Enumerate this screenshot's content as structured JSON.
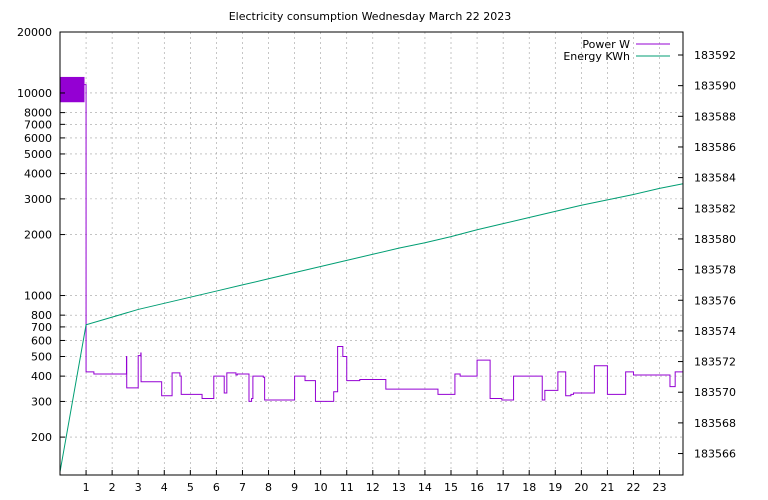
{
  "chart_data": {
    "type": "line",
    "title": "Electricity consumption Wednesday March 22 2023",
    "xlabel": "",
    "ylabel": "",
    "y2label": "",
    "grid": true,
    "legend_position": "top-right",
    "x_range": [
      0,
      23.9
    ],
    "x_ticks": [
      1,
      2,
      3,
      4,
      5,
      6,
      7,
      8,
      9,
      10,
      11,
      12,
      13,
      14,
      15,
      16,
      17,
      18,
      19,
      20,
      21,
      22,
      23
    ],
    "y_left": {
      "scale": "log",
      "range": [
        130,
        20000
      ],
      "ticks": [
        200,
        300,
        400,
        500,
        600,
        700,
        800,
        1000,
        2000,
        3000,
        4000,
        5000,
        6000,
        7000,
        8000,
        10000,
        20000
      ],
      "tick_labels": [
        "200",
        "300",
        "400",
        "500",
        "600",
        "700",
        "800",
        "1000",
        "2000",
        "3000",
        "4000",
        "5000",
        "6000",
        "7000",
        "8000",
        "10000",
        "20000"
      ]
    },
    "y_right": {
      "scale": "linear",
      "range": [
        183564.6,
        183593.5
      ],
      "ticks": [
        183566,
        183568,
        183570,
        183572,
        183574,
        183576,
        183578,
        183580,
        183582,
        183584,
        183586,
        183588,
        183590,
        183592
      ],
      "tick_labels": [
        "183566",
        "183568",
        "183570",
        "183572",
        "183574",
        "183576",
        "183578",
        "183580",
        "183582",
        "183584",
        "183586",
        "183588",
        "183590",
        "183592"
      ]
    },
    "series": [
      {
        "name": "Power W",
        "axis": "left",
        "color": "#9400d3",
        "step": true,
        "x": [
          0.0,
          0.5,
          0.94,
          1.0,
          1.3,
          2.55,
          2.56,
          3.0,
          3.1,
          3.11,
          3.9,
          4.3,
          4.6,
          4.65,
          5.4,
          5.45,
          5.9,
          6.3,
          6.4,
          6.75,
          6.8,
          7.25,
          7.35,
          7.4,
          7.8,
          7.85,
          8.5,
          9.0,
          9.4,
          9.8,
          9.85,
          10.5,
          10.65,
          10.85,
          11.0,
          11.5,
          12.2,
          12.5,
          13.5,
          14.0,
          14.5,
          15.0,
          15.15,
          15.35,
          16.0,
          16.5,
          16.95,
          17.4,
          18.5,
          18.6,
          19.1,
          19.4,
          19.6,
          19.7,
          20.5,
          21.0,
          21.6,
          21.7,
          22.0,
          23.0,
          23.4,
          23.6
        ],
        "y": [
          11000,
          11000,
          11000,
          420,
          410,
          500,
          350,
          505,
          520,
          375,
          320,
          415,
          400,
          325,
          325,
          310,
          400,
          330,
          415,
          405,
          410,
          300,
          310,
          400,
          395,
          305,
          305,
          400,
          380,
          300,
          300,
          335,
          560,
          500,
          380,
          385,
          385,
          345,
          345,
          345,
          325,
          325,
          410,
          400,
          480,
          310,
          305,
          400,
          305,
          340,
          420,
          320,
          325,
          330,
          450,
          325,
          325,
          420,
          405,
          405,
          355,
          420
        ]
      },
      {
        "name": "Energy KWh",
        "axis": "right",
        "color": "#009e73",
        "step": false,
        "x": [
          0.0,
          1.0,
          2.0,
          3.0,
          4.0,
          5.0,
          6.0,
          7.0,
          8.0,
          9.0,
          10.0,
          11.0,
          12.0,
          13.0,
          14.0,
          15.0,
          16.0,
          17.0,
          18.0,
          19.0,
          20.0,
          21.0,
          22.0,
          23.0,
          23.9
        ],
        "y": [
          183564.8,
          183574.4,
          183574.9,
          183575.4,
          183575.8,
          183576.2,
          183576.6,
          183577.0,
          183577.4,
          183577.8,
          183578.2,
          183578.6,
          183579.0,
          183579.4,
          183579.75,
          183580.15,
          183580.6,
          183581.0,
          183581.4,
          183581.8,
          183582.2,
          183582.55,
          183582.9,
          183583.3,
          183583.6
        ]
      }
    ]
  }
}
